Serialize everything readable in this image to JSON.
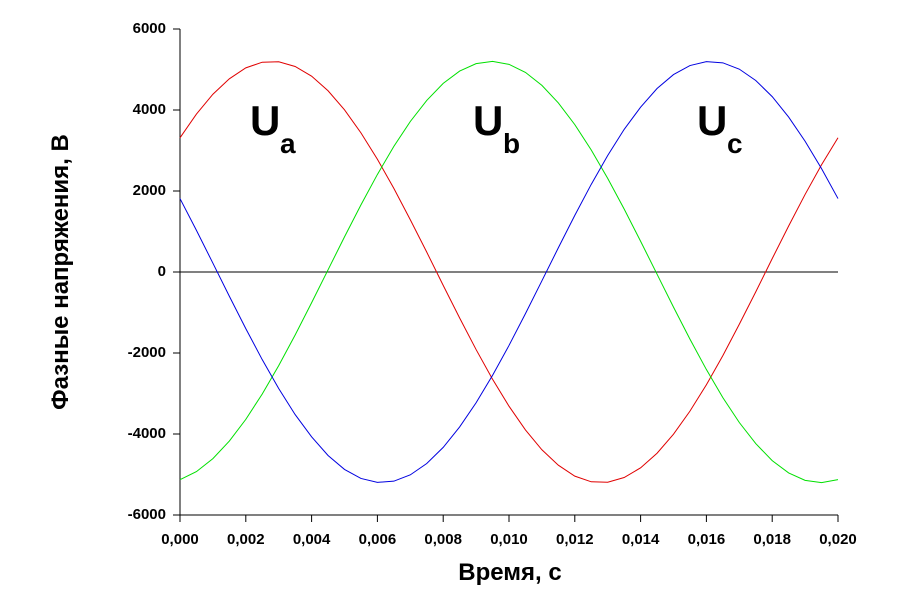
{
  "chart_data": {
    "type": "line",
    "x_label": "Время, с",
    "y_label": "Фазные напряжения, В",
    "x": [
      0,
      0.0005,
      0.001,
      0.0015,
      0.002,
      0.0025,
      0.003,
      0.0035,
      0.004,
      0.0045,
      0.005,
      0.0055,
      0.006,
      0.0065,
      0.007,
      0.0075,
      0.008,
      0.0085,
      0.009,
      0.0095,
      0.01,
      0.0105,
      0.011,
      0.0115,
      0.012,
      0.0125,
      0.013,
      0.0135,
      0.014,
      0.0145,
      0.015,
      0.0155,
      0.016,
      0.0165,
      0.017,
      0.0175,
      0.018,
      0.0185,
      0.019,
      0.0195,
      0.02
    ],
    "series": [
      {
        "name": "a",
        "color": "#e00000",
        "values": [
          3314,
          3900,
          4390,
          4770,
          5040,
          5180,
          5190,
          5075,
          4835,
          4475,
          4005,
          3435,
          2785,
          2065,
          1290,
          490,
          -330,
          -1135,
          -1915,
          -2647,
          -3314,
          -3900,
          -4390,
          -4770,
          -5040,
          -5180,
          -5190,
          -5075,
          -4835,
          -4475,
          -4005,
          -3435,
          -2785,
          -2065,
          -1290,
          -490,
          330,
          1135,
          1915,
          2647,
          3314
        ]
      },
      {
        "name": "b",
        "color": "#00e000",
        "values": [
          -5127,
          -4928,
          -4607,
          -4175,
          -3639,
          -3012,
          -2312,
          -1555,
          -760,
          54,
          867,
          1658,
          2409,
          3101,
          3716,
          4237,
          4658,
          4962,
          5144,
          5200,
          5127,
          4928,
          4607,
          4175,
          3639,
          3012,
          2312,
          1555,
          760,
          -54,
          -867,
          -1658,
          -2409,
          -3101,
          -3716,
          -4237,
          -4658,
          -4962,
          -5144,
          -5200,
          -5127
        ]
      },
      {
        "name": "c",
        "color": "#0000e0",
        "values": [
          1813,
          1028,
          218,
          -598,
          -1398,
          -2165,
          -2877,
          -3521,
          -4070,
          -4531,
          -4874,
          -5097,
          -5195,
          -5165,
          -5009,
          -4728,
          -4331,
          -3826,
          -3228,
          -2551,
          -1813,
          -1028,
          -218,
          598,
          1398,
          2165,
          2877,
          3521,
          4070,
          4531,
          4874,
          5097,
          5195,
          5165,
          5009,
          4728,
          4331,
          3826,
          3228,
          2551,
          1813
        ]
      }
    ],
    "annotations": [
      {
        "text": "U",
        "subscript": "a"
      },
      {
        "text": "U",
        "subscript": "b"
      },
      {
        "text": "U",
        "subscript": "c"
      }
    ],
    "xlim": [
      0,
      0.02
    ],
    "xticks": [
      {
        "value": 0,
        "label": "0,000"
      },
      {
        "value": 0.002,
        "label": "0,002"
      },
      {
        "value": 0.004,
        "label": "0,004"
      },
      {
        "value": 0.006,
        "label": "0,006"
      },
      {
        "value": 0.008,
        "label": "0,008"
      },
      {
        "value": 0.01,
        "label": "0,010"
      },
      {
        "value": 0.012,
        "label": "0,012"
      },
      {
        "value": 0.014,
        "label": "0,014"
      },
      {
        "value": 0.016,
        "label": "0,016"
      },
      {
        "value": 0.018,
        "label": "0,018"
      },
      {
        "value": 0.02,
        "label": "0,020"
      }
    ],
    "ylim": [
      -6000,
      6000
    ],
    "yticks": [
      -6000,
      -4000,
      -2000,
      0,
      2000,
      4000,
      6000
    ],
    "zero_line": true,
    "grid": false
  }
}
